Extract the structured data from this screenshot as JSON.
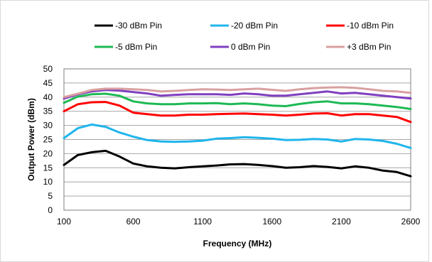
{
  "chart_data": {
    "type": "line",
    "title": "",
    "xlabel": "Frequency (MHz)",
    "ylabel": "Output Power (dBm)",
    "xlim": [
      100,
      2600
    ],
    "ylim": [
      0,
      50
    ],
    "x_ticks": [
      100,
      600,
      1100,
      1600,
      2100,
      2600
    ],
    "y_ticks": [
      0,
      5,
      10,
      15,
      20,
      25,
      30,
      35,
      40,
      45,
      50
    ],
    "grid": "horizontal",
    "legend_position": "top",
    "x": [
      100,
      200,
      300,
      400,
      500,
      600,
      700,
      800,
      900,
      1000,
      1100,
      1200,
      1300,
      1400,
      1500,
      1600,
      1700,
      1800,
      1900,
      2000,
      2100,
      2200,
      2300,
      2400,
      2500,
      2600
    ],
    "series": [
      {
        "name": "-30 dBm Pin",
        "color": "#000000",
        "values": [
          16,
          19.5,
          20.5,
          21,
          19,
          16.5,
          15.5,
          15,
          14.8,
          15.2,
          15.5,
          15.8,
          16.2,
          16.3,
          16,
          15.6,
          15,
          15.2,
          15.6,
          15.3,
          14.8,
          15.5,
          15,
          14,
          13.5,
          12
        ]
      },
      {
        "name": "-20 dBm Pin",
        "color": "#1FB5EC",
        "values": [
          25.5,
          29,
          30.3,
          29.5,
          27.5,
          26,
          24.8,
          24.3,
          24.2,
          24.3,
          24.6,
          25.3,
          25.5,
          25.8,
          25.6,
          25.3,
          24.8,
          24.9,
          25.2,
          25,
          24.3,
          25.2,
          25,
          24.5,
          23.5,
          22
        ]
      },
      {
        "name": "-10 dBm Pin",
        "color": "#FF0000",
        "values": [
          35,
          37.5,
          38.2,
          38.3,
          37,
          34.5,
          34,
          33.5,
          33.5,
          33.8,
          33.8,
          34,
          34.1,
          34.2,
          34,
          33.8,
          33.5,
          33.8,
          34.2,
          34.3,
          33.5,
          34,
          34,
          33.5,
          33,
          31.2
        ]
      },
      {
        "name": "-5 dBm Pin",
        "color": "#1DB954",
        "values": [
          38,
          40.2,
          41,
          41.2,
          40.5,
          38.5,
          37.8,
          37.5,
          37.5,
          37.8,
          37.8,
          37.9,
          37.5,
          37.8,
          37.5,
          37,
          36.8,
          37.6,
          38.2,
          38.5,
          37.8,
          37.8,
          37.5,
          37,
          36.5,
          35.8
        ]
      },
      {
        "name": "0 dBm Pin",
        "color": "#7F3FBF",
        "values": [
          39.5,
          41,
          42,
          42.5,
          42.3,
          41.8,
          41.3,
          40.5,
          40.8,
          41,
          41,
          41,
          40.8,
          41.3,
          41,
          40.5,
          40.5,
          41,
          41.5,
          42,
          41.3,
          41.5,
          41,
          40.5,
          40,
          39.5
        ]
      },
      {
        "name": "+3 dBm Pin",
        "color": "#D9A0A0",
        "values": [
          40,
          41.2,
          42.5,
          43,
          43,
          42.8,
          42.5,
          42,
          42.2,
          42.5,
          42.8,
          42.7,
          42.5,
          42.8,
          43,
          42.6,
          42.2,
          42.8,
          43.2,
          43.4,
          43.5,
          43.3,
          42.8,
          42.2,
          42,
          41.5
        ]
      }
    ]
  }
}
